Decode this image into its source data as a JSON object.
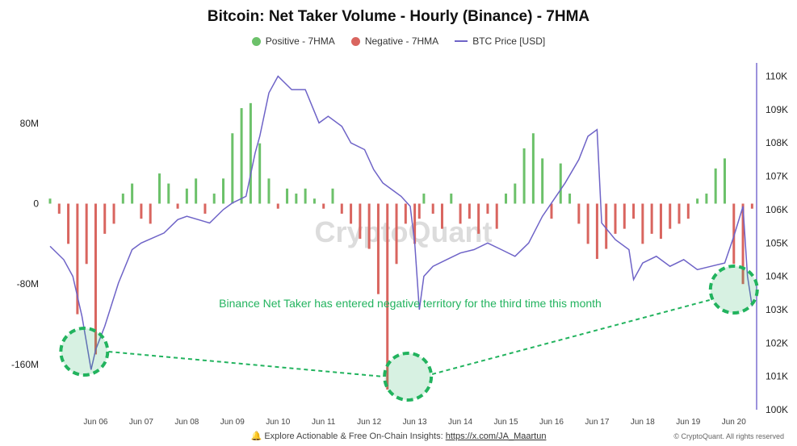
{
  "title": "Bitcoin: Net Taker Volume - Hourly (Binance) - 7HMA",
  "legend": {
    "positive": "Positive - 7HMA",
    "negative": "Negative - 7HMA",
    "price": "BTC Price [USD]"
  },
  "colors": {
    "positive": "#6cc16a",
    "negative": "#d9655f",
    "price": "#6e63c7",
    "highlight": "#22b35e",
    "axis": "#7b6fd0"
  },
  "watermark": "CryptoQuant",
  "annotation": "Binance Net Taker has entered negative territory for the third time this month",
  "footer": {
    "icon": "bell-icon",
    "text": "Explore Actionable & Free On-Chain Insights:",
    "link": "https://x.com/JA_Maartun",
    "copyright": "© CryptoQuant. All rights reserved"
  },
  "chart_data": {
    "type": "bar",
    "x_ticks": [
      "Jun 06",
      "Jun 07",
      "Jun 08",
      "Jun 09",
      "Jun 10",
      "Jun 11",
      "Jun 12",
      "Jun 13",
      "Jun 14",
      "Jun 15",
      "Jun 16",
      "Jun 17",
      "Jun 18",
      "Jun 19",
      "Jun 20"
    ],
    "y_left_ticks": [
      "80M",
      "0",
      "-80M",
      "-160M"
    ],
    "y_left_tick_values": [
      80,
      0,
      -80,
      -160
    ],
    "y_left_range": [
      -205,
      140
    ],
    "y_right_ticks": [
      "110K",
      "109K",
      "108K",
      "107K",
      "106K",
      "105K",
      "104K",
      "103K",
      "102K",
      "101K",
      "100K"
    ],
    "y_right_tick_values": [
      110,
      109,
      108,
      107,
      106,
      105,
      104,
      103,
      102,
      101,
      100
    ],
    "y_right_range": [
      100,
      110.4
    ],
    "x_range_days": [
      5.0,
      20.5
    ],
    "net_taker_hourly_7hma_M": {
      "day_offsets": [
        5.0,
        5.2,
        5.4,
        5.6,
        5.8,
        6.0,
        6.2,
        6.4,
        6.6,
        6.8,
        7.0,
        7.2,
        7.4,
        7.6,
        7.8,
        8.0,
        8.2,
        8.4,
        8.6,
        8.8,
        9.0,
        9.2,
        9.4,
        9.6,
        9.8,
        10.0,
        10.2,
        10.4,
        10.6,
        10.8,
        11.0,
        11.2,
        11.4,
        11.6,
        11.8,
        12.0,
        12.2,
        12.4,
        12.6,
        12.8,
        13.0,
        13.1,
        13.2,
        13.4,
        13.6,
        13.8,
        14.0,
        14.2,
        14.4,
        14.6,
        14.8,
        15.0,
        15.2,
        15.4,
        15.6,
        15.8,
        16.0,
        16.2,
        16.4,
        16.6,
        16.8,
        17.0,
        17.2,
        17.4,
        17.6,
        17.8,
        18.0,
        18.2,
        18.4,
        18.6,
        18.8,
        19.0,
        19.2,
        19.4,
        19.6,
        19.8,
        20.0,
        20.2,
        20.4
      ],
      "values": [
        5,
        -10,
        -40,
        -110,
        -60,
        -150,
        -30,
        -20,
        10,
        20,
        -15,
        -20,
        30,
        20,
        -5,
        15,
        25,
        -10,
        10,
        25,
        70,
        95,
        100,
        60,
        25,
        -5,
        15,
        10,
        15,
        5,
        -5,
        15,
        -10,
        -20,
        -35,
        -45,
        -90,
        -185,
        -60,
        -20,
        -40,
        -15,
        10,
        -10,
        -25,
        10,
        -20,
        -15,
        -30,
        -10,
        -25,
        10,
        20,
        55,
        70,
        45,
        -15,
        40,
        10,
        -20,
        -40,
        -55,
        -45,
        -30,
        -25,
        -15,
        -40,
        -30,
        -35,
        -25,
        -20,
        -15,
        5,
        10,
        35,
        45,
        -60,
        -80,
        -5
      ]
    },
    "btc_price_K": {
      "day_offsets": [
        5.0,
        5.3,
        5.5,
        5.7,
        5.8,
        5.9,
        6.0,
        6.2,
        6.5,
        6.8,
        7.0,
        7.5,
        7.8,
        8.0,
        8.5,
        8.8,
        9.0,
        9.3,
        9.5,
        9.6,
        9.8,
        10.0,
        10.3,
        10.6,
        10.9,
        11.1,
        11.4,
        11.6,
        11.9,
        12.1,
        12.3,
        12.5,
        12.7,
        12.9,
        13.0,
        13.1,
        13.2,
        13.4,
        13.7,
        14.0,
        14.3,
        14.6,
        14.9,
        15.2,
        15.5,
        15.8,
        16.0,
        16.3,
        16.6,
        16.8,
        17.0,
        17.1,
        17.4,
        17.7,
        17.8,
        18.0,
        18.3,
        18.6,
        18.9,
        19.2,
        19.5,
        19.8,
        20.0,
        20.2,
        20.3,
        20.4
      ],
      "values": [
        104.9,
        104.5,
        104.0,
        102.8,
        102.0,
        101.2,
        101.8,
        102.5,
        103.8,
        104.8,
        105.0,
        105.3,
        105.7,
        105.8,
        105.6,
        106.0,
        106.2,
        106.4,
        107.7,
        108.2,
        109.5,
        110.0,
        109.6,
        109.6,
        108.6,
        108.8,
        108.5,
        108.0,
        107.8,
        107.2,
        106.8,
        106.6,
        106.4,
        106.1,
        105.0,
        103.0,
        104.0,
        104.3,
        104.5,
        104.7,
        104.8,
        105.0,
        104.8,
        104.6,
        105.0,
        105.8,
        106.2,
        106.8,
        107.5,
        108.2,
        108.4,
        105.6,
        105.1,
        104.8,
        103.9,
        104.4,
        104.6,
        104.3,
        104.5,
        104.2,
        104.3,
        104.4,
        105.2,
        106.1,
        104.0,
        103.1
      ]
    },
    "highlight_circles_day": [
      5.75,
      12.85,
      20.0
    ]
  }
}
